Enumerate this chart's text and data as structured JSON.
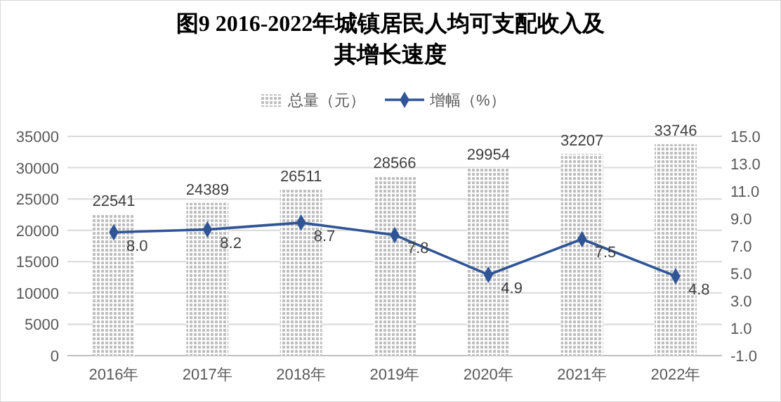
{
  "chart_data": {
    "type": "bar",
    "title": "图9 2016-2022年城镇居民人均可支配收入及其增长速度",
    "categories": [
      "2016年",
      "2017年",
      "2018年",
      "2019年",
      "2020年",
      "2021年",
      "2022年"
    ],
    "series": [
      {
        "name": "总量（元）",
        "color": "#bfbfbf",
        "values": [
          22541,
          24389,
          26511,
          28566,
          29954,
          32207,
          33746
        ]
      },
      {
        "name": "增幅（%）",
        "type": "line",
        "axis": "y2",
        "color": "#2f5597",
        "marker": "diamond",
        "values": [
          8.0,
          8.2,
          8.7,
          7.8,
          4.9,
          7.5,
          4.8
        ],
        "value_labels": [
          "8.0",
          "8.2",
          "8.7",
          "7.8",
          "4.9",
          "7.5",
          "4.8"
        ]
      }
    ],
    "ylim": [
      0,
      35000
    ],
    "yticks": [
      0,
      5000,
      10000,
      15000,
      20000,
      25000,
      30000,
      35000
    ],
    "y2lim": [
      -1,
      15
    ],
    "y2ticks": [
      {
        "value": -1,
        "label": "-1.0"
      },
      {
        "value": 1,
        "label": "1.0"
      },
      {
        "value": 3,
        "label": "3.0"
      },
      {
        "value": 5,
        "label": "5.0"
      },
      {
        "value": 7,
        "label": "7.0"
      },
      {
        "value": 9,
        "label": "9.0"
      },
      {
        "value": 11,
        "label": "11.0"
      },
      {
        "value": 13,
        "label": "13.0"
      },
      {
        "value": 15,
        "label": "15.0"
      }
    ],
    "grid": "y",
    "legend": "top",
    "data_labels": true
  }
}
